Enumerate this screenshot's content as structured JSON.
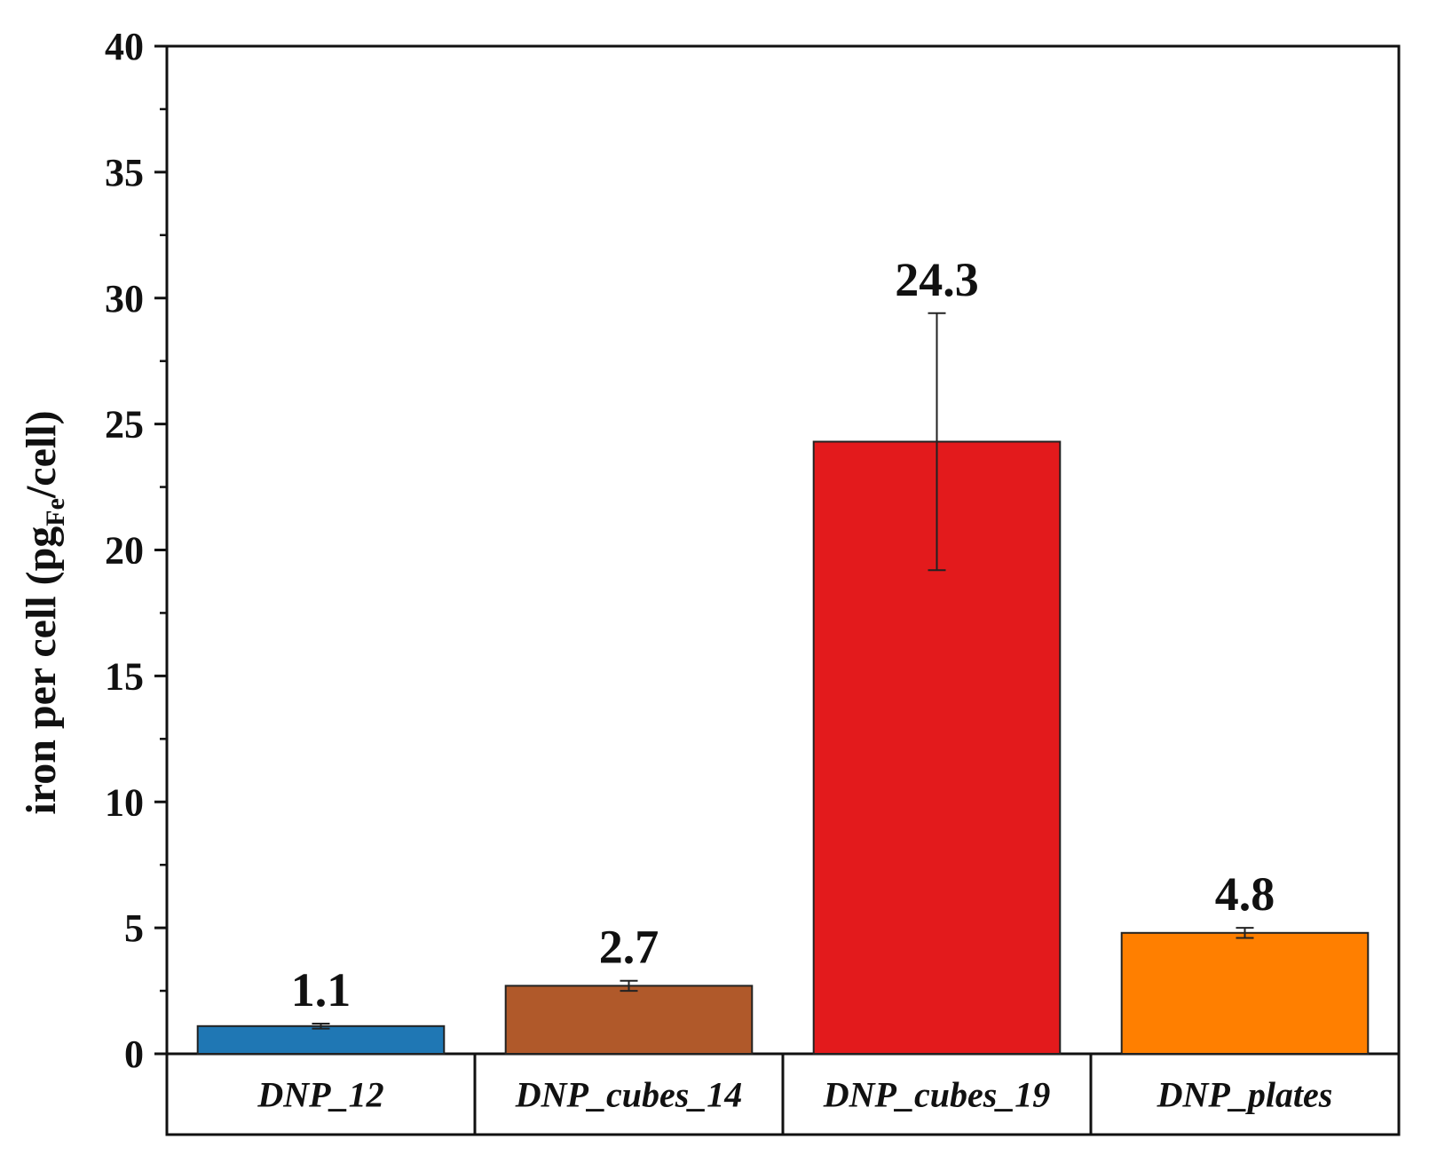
{
  "chart_data": {
    "type": "bar",
    "title": "",
    "xlabel": "",
    "ylabel": {
      "main": "iron per cell (pg",
      "subscript": "Fe",
      "suffix": "/cell)"
    },
    "ylim": [
      0,
      40
    ],
    "yticks": [
      "0",
      "5",
      "10",
      "15",
      "20",
      "25",
      "30",
      "35",
      "40"
    ],
    "categories": [
      "DNP_12",
      "DNP_cubes_14",
      "DNP_cubes_19",
      "DNP_plates"
    ],
    "values": [
      1.1,
      2.7,
      24.3,
      4.8
    ],
    "value_labels": [
      "1.1",
      "2.7",
      "24.3",
      "4.8"
    ],
    "errors": [
      0.1,
      0.2,
      5.1,
      0.2
    ],
    "colors": [
      "#1f77b4",
      "#b0592a",
      "#e31a1c",
      "#ff7f00"
    ],
    "grid": false,
    "legend": "none"
  }
}
